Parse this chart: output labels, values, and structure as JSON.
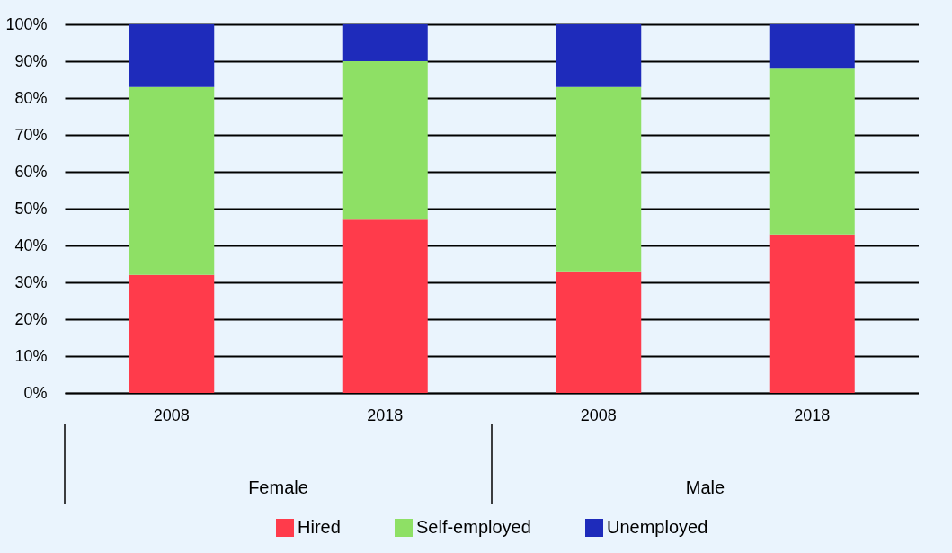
{
  "chart_data": {
    "type": "bar",
    "stacked": true,
    "categories": [
      "2008",
      "2018",
      "2008",
      "2018"
    ],
    "series": [
      {
        "name": "Hired",
        "color": "#ff3b4b",
        "values": [
          32,
          47,
          33,
          43
        ]
      },
      {
        "name": "Self-employed",
        "color": "#8ee065",
        "values": [
          51,
          43,
          50,
          45
        ]
      },
      {
        "name": "Unemployed",
        "color": "#1e2bbb",
        "values": [
          17,
          10,
          17,
          12
        ]
      }
    ],
    "ylim": [
      0,
      100
    ],
    "yticks": [
      {
        "value": 0,
        "label": "0%"
      },
      {
        "value": 10,
        "label": "10%"
      },
      {
        "value": 20,
        "label": "20%"
      },
      {
        "value": 30,
        "label": "30%"
      },
      {
        "value": 40,
        "label": "40%"
      },
      {
        "value": 50,
        "label": "50%"
      },
      {
        "value": 60,
        "label": "60%"
      },
      {
        "value": 70,
        "label": "70%"
      },
      {
        "value": 80,
        "label": "80%"
      },
      {
        "value": 90,
        "label": "90%"
      },
      {
        "value": 100,
        "label": "100%"
      }
    ],
    "annotations": [
      "Female",
      "Male"
    ],
    "grid": "y",
    "legend": "bottom"
  }
}
